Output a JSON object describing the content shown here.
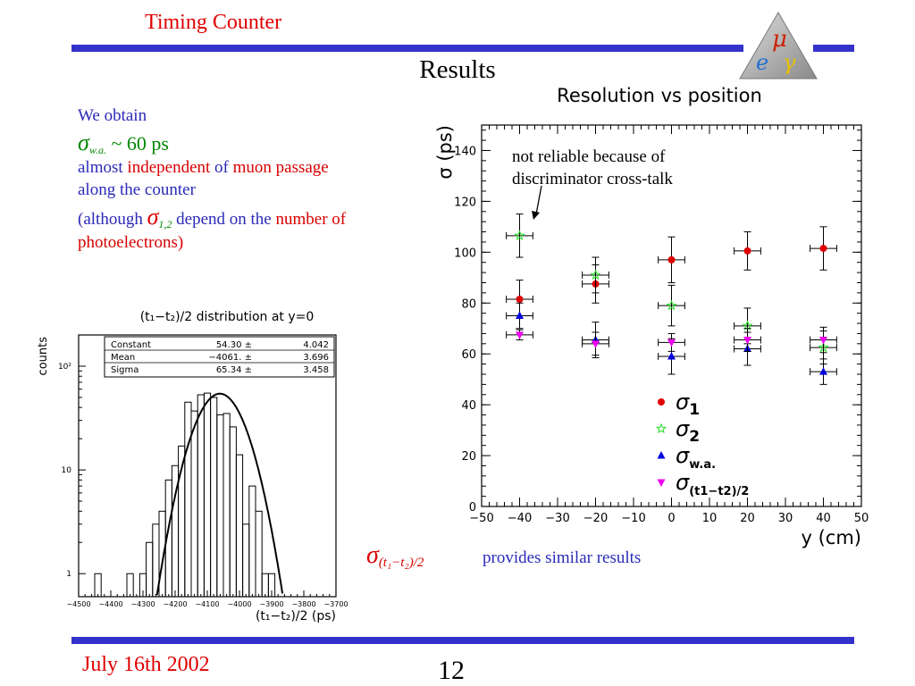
{
  "header": {
    "title": "Timing Counter"
  },
  "slide": {
    "title": "Results",
    "footer_date": "July 16th 2002",
    "page_number": "12",
    "logo_letters": [
      "μ",
      "e",
      "γ"
    ]
  },
  "intro": {
    "line1": "We obtain",
    "sigma_symbol": "σ",
    "sigma_sub": "w.a.",
    "sigma_value": " ~ 60 ps",
    "almost": "almost",
    "independent": "independent",
    "of": "of",
    "muon_passage": "muon passage",
    "along": "along the counter",
    "although": "(although",
    "sigma12_sub": "1,2",
    "depend_on_the": "depend on the",
    "number_of": "number of",
    "photoelectrons": "photoelectrons)"
  },
  "bottom_note": {
    "sigma_symbol": "σ",
    "formula_sub": "(t₁−t₂)/2",
    "text": "provides similar results"
  },
  "colors": {
    "accent_red": "#e00000",
    "accent_blue": "#3333cc",
    "sigma1": "#e00000",
    "sigma2": "#22dd22",
    "sigma_wa": "#0000e0",
    "sigma_t": "#ee00ee"
  },
  "chart_data": [
    {
      "type": "scatter",
      "title": "Resolution vs position",
      "xlabel": "y (cm)",
      "ylabel": "σ (ps)",
      "xlim": [
        -50,
        50
      ],
      "ylim": [
        0,
        150
      ],
      "xticks": [
        -50,
        -40,
        -30,
        -20,
        -10,
        0,
        10,
        20,
        30,
        40,
        50
      ],
      "yticks": [
        0,
        20,
        40,
        60,
        80,
        100,
        120,
        140
      ],
      "annotation": [
        "not reliable because of",
        "discriminator cross-talk"
      ],
      "legend_position": "bottom-right",
      "series": [
        {
          "name": "σ",
          "legend_sub": "1",
          "marker": "circle",
          "color": "#e00000",
          "points": [
            {
              "x": -40,
              "y": 81.5,
              "yerr": 7.5
            },
            {
              "x": -20,
              "y": 87.5,
              "yerr": 7.5
            },
            {
              "x": 0,
              "y": 97,
              "yerr": 9
            },
            {
              "x": 20,
              "y": 100.5,
              "yerr": 7.5
            },
            {
              "x": 40,
              "y": 101.5,
              "yerr": 8.5
            }
          ]
        },
        {
          "name": "σ",
          "legend_sub": "2",
          "marker": "star",
          "color": "#22dd22",
          "points": [
            {
              "x": -40,
              "y": 106.5,
              "yerr": 8.5
            },
            {
              "x": -20,
              "y": 91,
              "yerr": 7
            },
            {
              "x": 0,
              "y": 79,
              "yerr": 8
            },
            {
              "x": 20,
              "y": 71,
              "yerr": 7
            },
            {
              "x": 40,
              "y": 62.5,
              "yerr": 6.5
            }
          ]
        },
        {
          "name": "σ",
          "legend_sub": "w.a.",
          "marker": "triangle-up",
          "color": "#0000e0",
          "points": [
            {
              "x": -40,
              "y": 75,
              "yerr": 5
            },
            {
              "x": -20,
              "y": 65.5,
              "yerr": 7
            },
            {
              "x": 0,
              "y": 59,
              "yerr": 7
            },
            {
              "x": 20,
              "y": 62,
              "yerr": 6.5
            },
            {
              "x": 40,
              "y": 53,
              "yerr": 5
            }
          ]
        },
        {
          "name": "σ",
          "legend_sub": "(t1−t2)/2",
          "marker": "triangle-down",
          "color": "#ee00ee",
          "points": [
            {
              "x": -40,
              "y": 67.5,
              "yerr": 2
            },
            {
              "x": -20,
              "y": 64,
              "yerr": 4.5
            },
            {
              "x": 0,
              "y": 64.5,
              "yerr": 3.5
            },
            {
              "x": 20,
              "y": 65.5,
              "yerr": 4.5
            },
            {
              "x": 40,
              "y": 65.5,
              "yerr": 5
            }
          ]
        }
      ],
      "xerr": 3.5
    },
    {
      "type": "histogram",
      "title": "(t₁−t₂)/2 distribution at y=0",
      "xlabel": "(t₁−t₂)/2 (ps)",
      "ylabel": "counts",
      "log_y": true,
      "xlim": [
        -4500,
        -3700
      ],
      "ylim": [
        0.6,
        200
      ],
      "xticks": [
        -4500,
        -4400,
        -4300,
        -4200,
        -4100,
        -4000,
        -3900,
        -3800,
        -3700
      ],
      "yticks": [
        {
          "value": 1,
          "label": "1"
        },
        {
          "value": 10,
          "label": "10"
        },
        {
          "value": 100,
          "label": "10²"
        }
      ],
      "stats": [
        {
          "name": "Constant",
          "value": "54.30 ±",
          "error": "4.042"
        },
        {
          "name": "Mean",
          "value": "−4061. ±",
          "error": "3.696"
        },
        {
          "name": "Sigma",
          "value": "65.34 ±",
          "error": "3.458"
        }
      ],
      "fit": {
        "constant": 54.3,
        "mean": -4061,
        "sigma": 65.34
      },
      "bin_width": 20,
      "bins": [
        {
          "x": -4440,
          "count": 1
        },
        {
          "x": -4340,
          "count": 1
        },
        {
          "x": -4300,
          "count": 1
        },
        {
          "x": -4280,
          "count": 2
        },
        {
          "x": -4260,
          "count": 3
        },
        {
          "x": -4240,
          "count": 4
        },
        {
          "x": -4220,
          "count": 8
        },
        {
          "x": -4200,
          "count": 11
        },
        {
          "x": -4180,
          "count": 17
        },
        {
          "x": -4160,
          "count": 45
        },
        {
          "x": -4140,
          "count": 37
        },
        {
          "x": -4120,
          "count": 53
        },
        {
          "x": -4100,
          "count": 55
        },
        {
          "x": -4080,
          "count": 50
        },
        {
          "x": -4060,
          "count": 34
        },
        {
          "x": -4040,
          "count": 35
        },
        {
          "x": -4020,
          "count": 26
        },
        {
          "x": -4000,
          "count": 14
        },
        {
          "x": -3980,
          "count": 3
        },
        {
          "x": -3960,
          "count": 7
        },
        {
          "x": -3940,
          "count": 4
        },
        {
          "x": -3920,
          "count": 1
        },
        {
          "x": -3900,
          "count": 1
        }
      ]
    }
  ]
}
